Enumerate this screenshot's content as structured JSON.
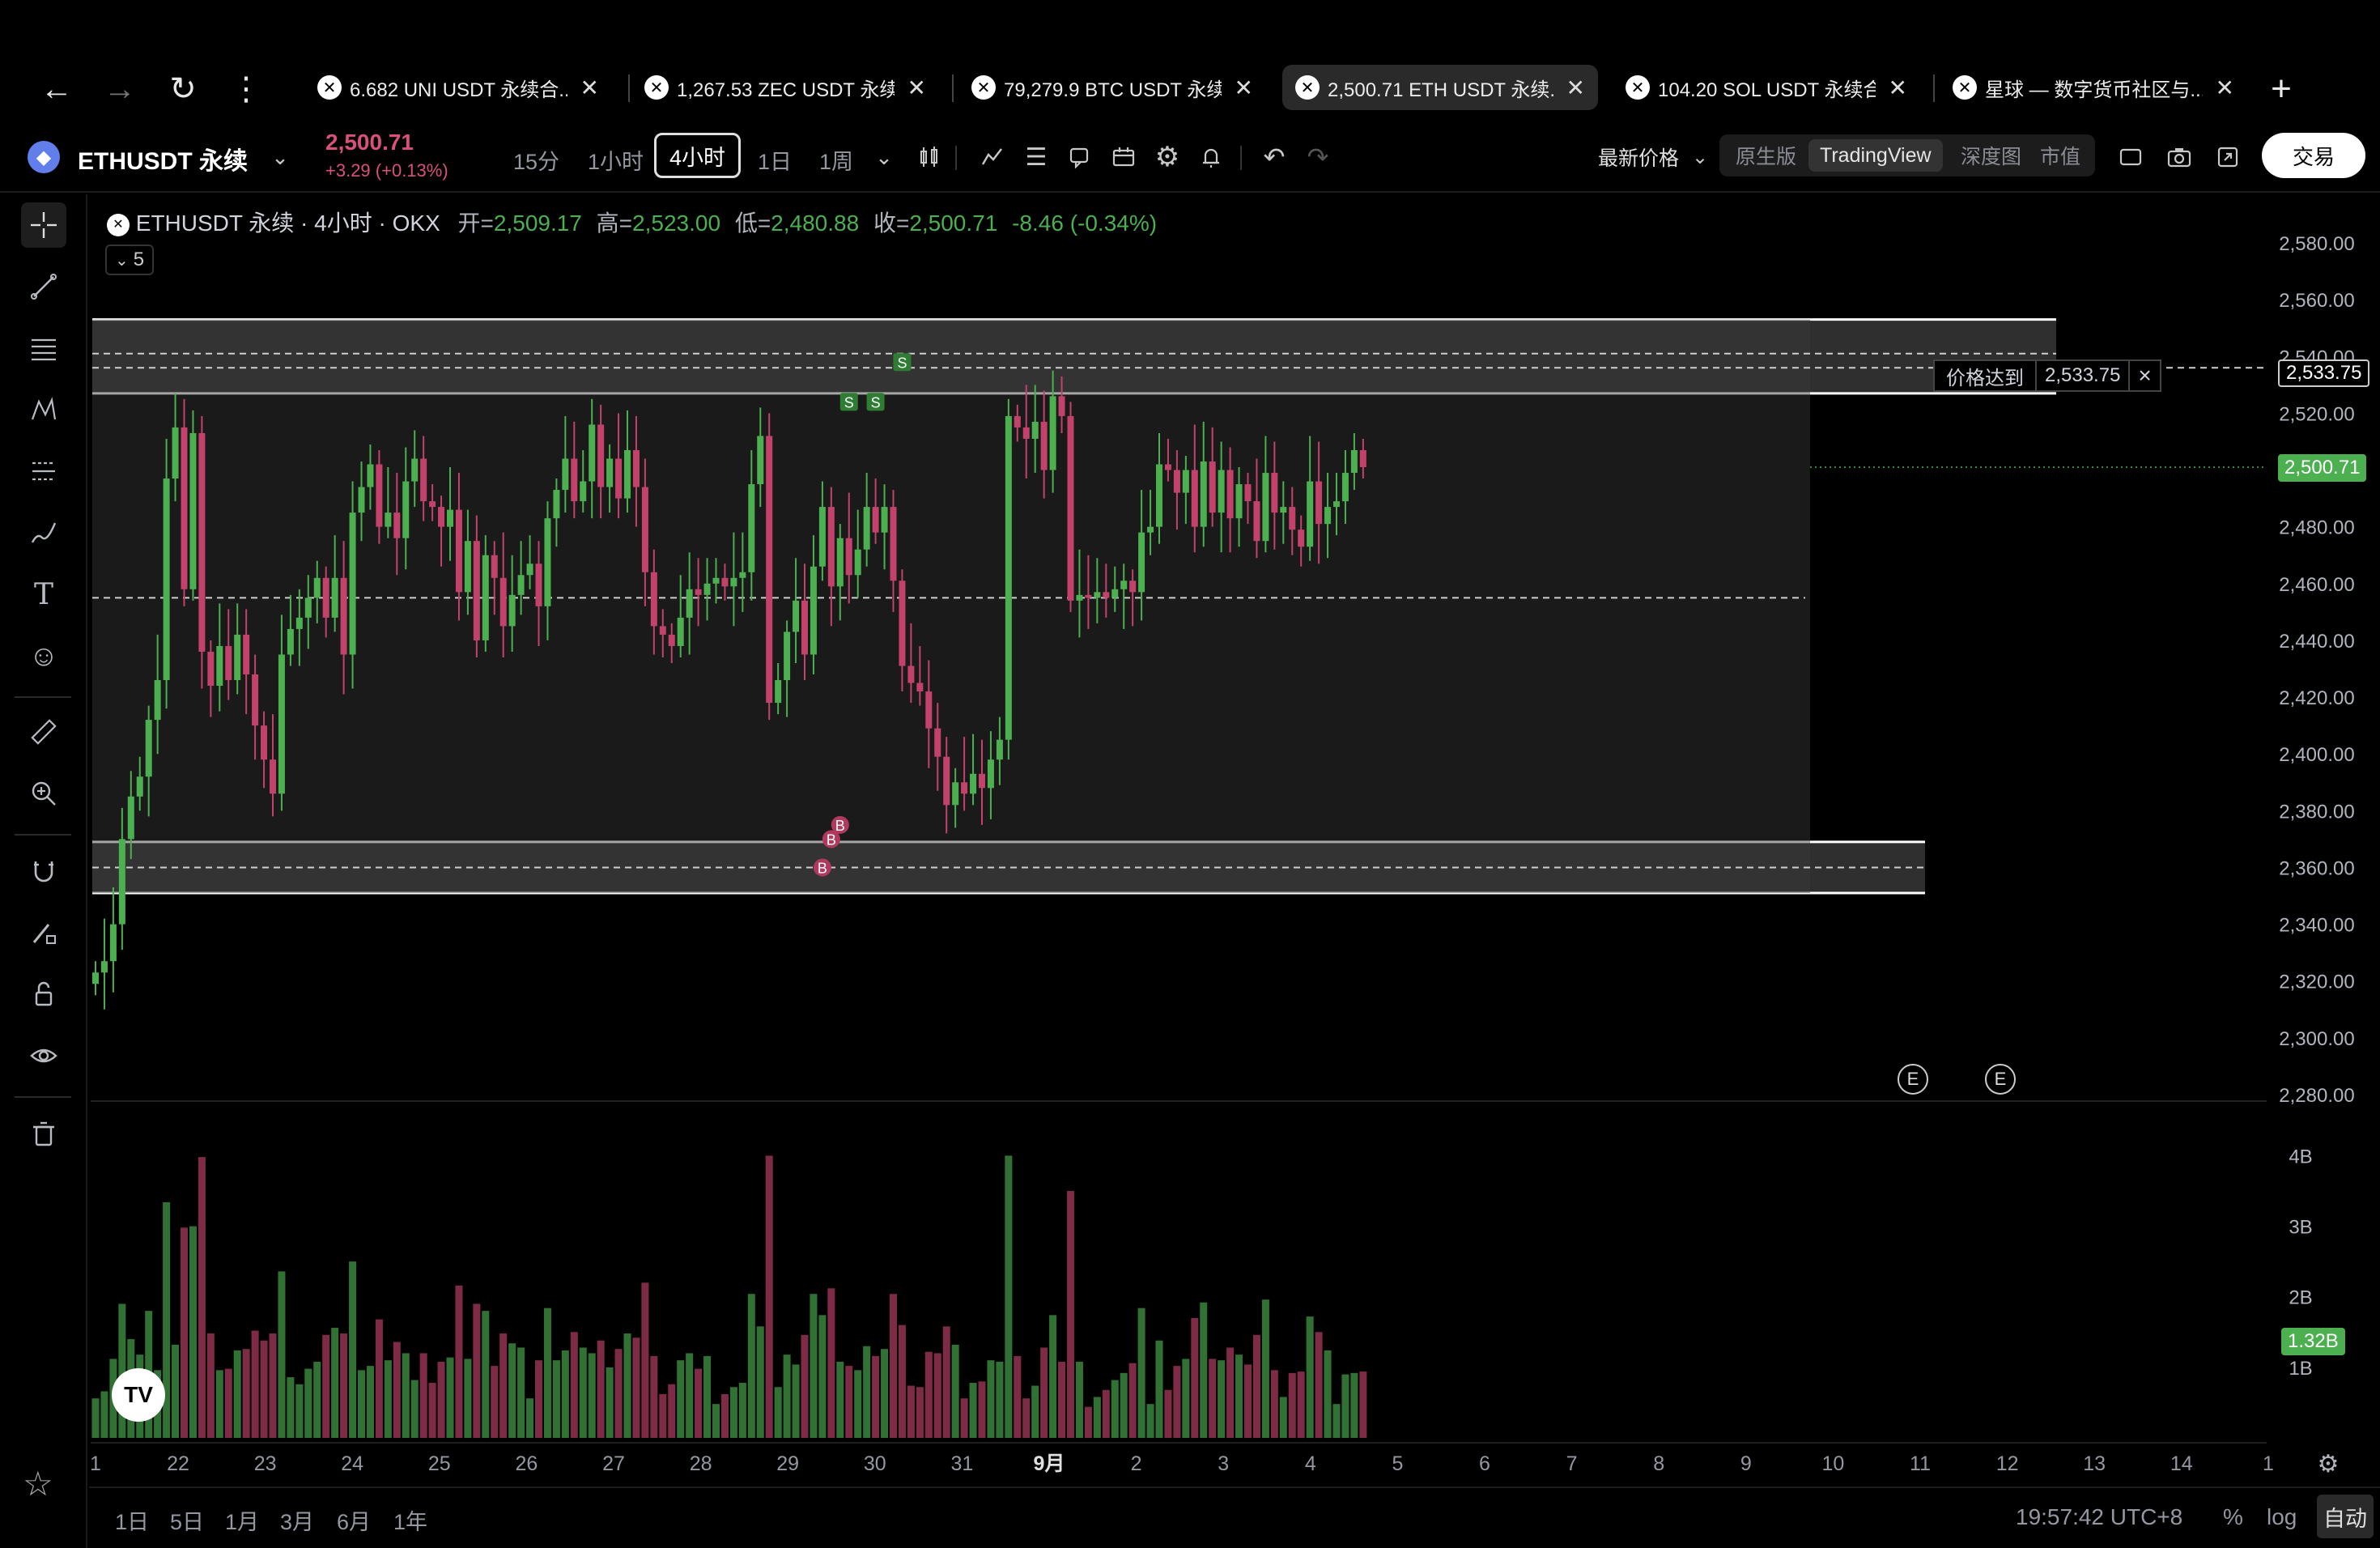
{
  "browser": {
    "tabs": [
      {
        "title": "6.682 UNI USDT 永续合...",
        "active": false
      },
      {
        "title": "1,267.53 ZEC USDT 永续...",
        "active": false
      },
      {
        "title": "79,279.9 BTC USDT 永续...",
        "active": false
      },
      {
        "title": "2,500.71 ETH USDT 永续...",
        "active": true
      },
      {
        "title": "104.20 SOL USDT 永续合...",
        "active": false
      },
      {
        "title": "星球 — 数字货币社区与...",
        "active": false
      }
    ],
    "close_glyph": "✕",
    "new_tab_glyph": "+"
  },
  "toolbar": {
    "symbol": "ETHUSDT 永续",
    "price": "2,500.71",
    "change": "+3.29 (+0.13%)",
    "timeframes": [
      "15分",
      "1小时",
      "4小时",
      "1日",
      "1周"
    ],
    "active_timeframe": "4小时",
    "price_type": "最新价格",
    "views": [
      "原生版",
      "TradingView",
      "深度图",
      "市值"
    ],
    "active_view": "TradingView",
    "trade_label": "交易"
  },
  "legend": {
    "title": "ETHUSDT 永续 · 4小时 · OKX",
    "open_label": "开=",
    "open": "2,509.17",
    "high_label": "高=",
    "high": "2,523.00",
    "low_label": "低=",
    "low": "2,480.88",
    "close_label": "收=",
    "close": "2,500.71",
    "change": "-8.46 (-0.34%)",
    "collapsed_count": "5"
  },
  "alert": {
    "label": "价格达到",
    "price": "2,533.75",
    "axis_label": "2,533.75"
  },
  "current_price_label": "2,500.71",
  "volume_label": "1.32B",
  "bottom": {
    "ranges": [
      "1日",
      "5日",
      "1月",
      "3月",
      "6月",
      "1年"
    ],
    "time": "19:57:42 UTC+8",
    "percent": "%",
    "log": "log",
    "auto": "自动"
  },
  "colors": {
    "up": "#4caf50",
    "down": "#c2426b",
    "zone": "#3a3a3a",
    "background": "#000000"
  },
  "chart_data": {
    "type": "candlestick",
    "symbol": "ETHUSDT",
    "interval": "4h",
    "y_ticks": [
      "2,580.00",
      "2,560.00",
      "2,540.00",
      "2,520.00",
      "2,500.00",
      "2,480.00",
      "2,460.00",
      "2,440.00",
      "2,420.00",
      "2,400.00",
      "2,380.00",
      "2,360.00",
      "2,340.00",
      "2,320.00",
      "2,300.00",
      "2,280.00"
    ],
    "ylim": [
      2280,
      2580
    ],
    "volume_ticks": [
      "4B",
      "3B",
      "2B",
      "1B"
    ],
    "volume_ylim": [
      0,
      4.2
    ],
    "x_ticks": [
      "1",
      "22",
      "23",
      "24",
      "25",
      "26",
      "27",
      "28",
      "29",
      "30",
      "31",
      "9月",
      "2",
      "3",
      "4",
      "5",
      "6",
      "7",
      "8",
      "9",
      "10",
      "11",
      "12",
      "13",
      "14",
      "1"
    ],
    "zones": [
      {
        "top": 2553,
        "bottom": 2527
      },
      {
        "top": 2369,
        "bottom": 2351
      }
    ],
    "dashed_levels": [
      2541,
      2536,
      2455,
      2360
    ],
    "signals": [
      {
        "type": "S",
        "candle": 85,
        "price": 2524
      },
      {
        "type": "S",
        "candle": 88,
        "price": 2524
      },
      {
        "type": "S",
        "candle": 91,
        "price": 2538
      },
      {
        "type": "B",
        "candle": 84,
        "price": 2375
      },
      {
        "type": "B",
        "candle": 83,
        "price": 2370
      },
      {
        "type": "B",
        "candle": 82,
        "price": 2360
      }
    ],
    "events": [
      "E",
      "E"
    ],
    "closes": [
      2323,
      2327,
      2340,
      2370,
      2385,
      2392,
      2412,
      2426,
      2497,
      2515,
      2458,
      2513,
      2436,
      2424,
      2438,
      2426,
      2442,
      2428,
      2410,
      2398,
      2386,
      2435,
      2444,
      2448,
      2455,
      2462,
      2448,
      2462,
      2435,
      2485,
      2494,
      2502,
      2480,
      2485,
      2476,
      2496,
      2504,
      2489,
      2487,
      2480,
      2486,
      2457,
      2475,
      2440,
      2470,
      2462,
      2445,
      2456,
      2463,
      2467,
      2452,
      2483,
      2493,
      2504,
      2489,
      2496,
      2516,
      2494,
      2504,
      2490,
      2507,
      2494,
      2464,
      2445,
      2442,
      2438,
      2448,
      2458,
      2456,
      2460,
      2462,
      2459,
      2462,
      2464,
      2495,
      2512,
      2418,
      2426,
      2443,
      2454,
      2435,
      2466,
      2487,
      2459,
      2476,
      2463,
      2472,
      2487,
      2478,
      2487,
      2461,
      2431,
      2425,
      2422,
      2409,
      2399,
      2382,
      2390,
      2386,
      2393,
      2388,
      2398,
      2405,
      2519,
      2515,
      2511,
      2517,
      2500,
      2526,
      2519,
      2454,
      2456,
      2455,
      2457,
      2455,
      2458,
      2461,
      2457,
      2478,
      2480,
      2502,
      2500,
      2492,
      2500,
      2480,
      2503,
      2485,
      2500,
      2483,
      2495,
      2489,
      2475,
      2499,
      2485,
      2487,
      2479,
      2473,
      2496,
      2481,
      2487,
      2489,
      2499,
      2507,
      2501
    ]
  }
}
